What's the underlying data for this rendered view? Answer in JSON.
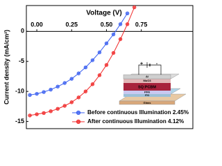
{
  "chart_data": {
    "type": "line",
    "x_label": "Voltage (V)",
    "y_label": "Current density (mA/cm²)",
    "x": [
      -0.05,
      0,
      0.05,
      0.1,
      0.15,
      0.2,
      0.25,
      0.3,
      0.35,
      0.4,
      0.45,
      0.5,
      0.55,
      0.6,
      0.65,
      0.7
    ],
    "series": [
      {
        "name": "Before continuous Illumination 2.45%",
        "color": "#3a5ff0",
        "values": [
          -10.6,
          -10.4,
          -10.1,
          -9.7,
          -9.2,
          -8.6,
          -7.9,
          -7.0,
          -6.0,
          -4.8,
          -3.5,
          -2.0,
          -0.5,
          1.2,
          3.0,
          null
        ]
      },
      {
        "name": "After continuous Illumination 4.12%",
        "color": "#f02a2a",
        "values": [
          -14.0,
          -13.8,
          -13.6,
          -13.3,
          -12.9,
          -12.4,
          -11.8,
          -11.0,
          -10.0,
          -8.8,
          -7.3,
          -5.6,
          -3.6,
          -1.3,
          1.2,
          4.0
        ]
      }
    ],
    "xlim": [
      -0.075,
      1.12
    ],
    "ylim": [
      -16.2,
      4.3
    ],
    "xticks": [
      {
        "value": 0,
        "label": "0.00"
      },
      {
        "value": 0.25,
        "label": "0.25"
      },
      {
        "value": 0.5,
        "label": "0.50"
      },
      {
        "value": 0.75,
        "label": "0.75"
      }
    ],
    "yticks": [
      0,
      -5,
      -10,
      -15
    ],
    "legend": "lower right",
    "inset_labels": [
      "Al",
      "MoO3",
      "SQ:PCBM",
      "PFN",
      "ITO",
      "Glass",
      "+",
      "-"
    ]
  }
}
